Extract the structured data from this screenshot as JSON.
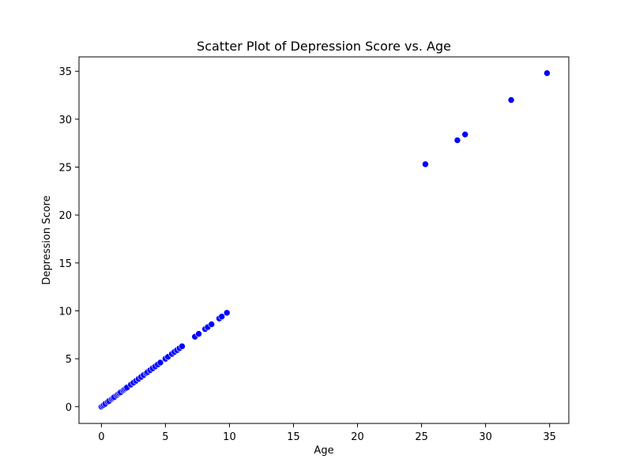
{
  "chart_data": {
    "type": "scatter",
    "title": "Scatter Plot of Depression Score vs. Age",
    "xlabel": "Age",
    "ylabel": "Depression Score",
    "xlim": [
      -1.75,
      36.5
    ],
    "ylim": [
      -1.75,
      36.5
    ],
    "xticks": [
      0,
      5,
      10,
      15,
      20,
      25,
      30,
      35
    ],
    "yticks": [
      0,
      5,
      10,
      15,
      20,
      25,
      30,
      35
    ],
    "grid": false,
    "legend": "none",
    "marker_color": "#0000ff",
    "marker_edge_color": "#ffffff",
    "points": [
      {
        "x": 0.0,
        "y": 0.0
      },
      {
        "x": 0.1,
        "y": 0.1
      },
      {
        "x": 0.2,
        "y": 0.2
      },
      {
        "x": 0.3,
        "y": 0.3
      },
      {
        "x": 0.5,
        "y": 0.5
      },
      {
        "x": 0.6,
        "y": 0.6
      },
      {
        "x": 0.8,
        "y": 0.8
      },
      {
        "x": 0.9,
        "y": 0.9
      },
      {
        "x": 1.0,
        "y": 1.0
      },
      {
        "x": 1.2,
        "y": 1.2
      },
      {
        "x": 1.3,
        "y": 1.3
      },
      {
        "x": 1.4,
        "y": 1.4
      },
      {
        "x": 1.5,
        "y": 1.5
      },
      {
        "x": 1.7,
        "y": 1.7
      },
      {
        "x": 1.8,
        "y": 1.8
      },
      {
        "x": 1.9,
        "y": 1.9
      },
      {
        "x": 2.0,
        "y": 2.0
      },
      {
        "x": 2.3,
        "y": 2.3
      },
      {
        "x": 2.5,
        "y": 2.5
      },
      {
        "x": 2.7,
        "y": 2.7
      },
      {
        "x": 2.9,
        "y": 2.9
      },
      {
        "x": 3.1,
        "y": 3.1
      },
      {
        "x": 3.3,
        "y": 3.3
      },
      {
        "x": 3.5,
        "y": 3.5
      },
      {
        "x": 3.6,
        "y": 3.6
      },
      {
        "x": 3.8,
        "y": 3.8
      },
      {
        "x": 4.0,
        "y": 4.0
      },
      {
        "x": 4.2,
        "y": 4.2
      },
      {
        "x": 4.4,
        "y": 4.4
      },
      {
        "x": 4.6,
        "y": 4.6
      },
      {
        "x": 5.0,
        "y": 5.0
      },
      {
        "x": 5.2,
        "y": 5.2
      },
      {
        "x": 5.5,
        "y": 5.5
      },
      {
        "x": 5.7,
        "y": 5.7
      },
      {
        "x": 5.9,
        "y": 5.9
      },
      {
        "x": 6.1,
        "y": 6.1
      },
      {
        "x": 6.3,
        "y": 6.3
      },
      {
        "x": 7.3,
        "y": 7.3
      },
      {
        "x": 7.6,
        "y": 7.6
      },
      {
        "x": 8.1,
        "y": 8.1
      },
      {
        "x": 8.3,
        "y": 8.3
      },
      {
        "x": 8.6,
        "y": 8.6
      },
      {
        "x": 9.2,
        "y": 9.2
      },
      {
        "x": 9.4,
        "y": 9.4
      },
      {
        "x": 9.8,
        "y": 9.8
      },
      {
        "x": 25.3,
        "y": 25.3
      },
      {
        "x": 27.8,
        "y": 27.8
      },
      {
        "x": 28.4,
        "y": 28.4
      },
      {
        "x": 32.0,
        "y": 32.0
      },
      {
        "x": 34.8,
        "y": 34.8
      }
    ]
  }
}
